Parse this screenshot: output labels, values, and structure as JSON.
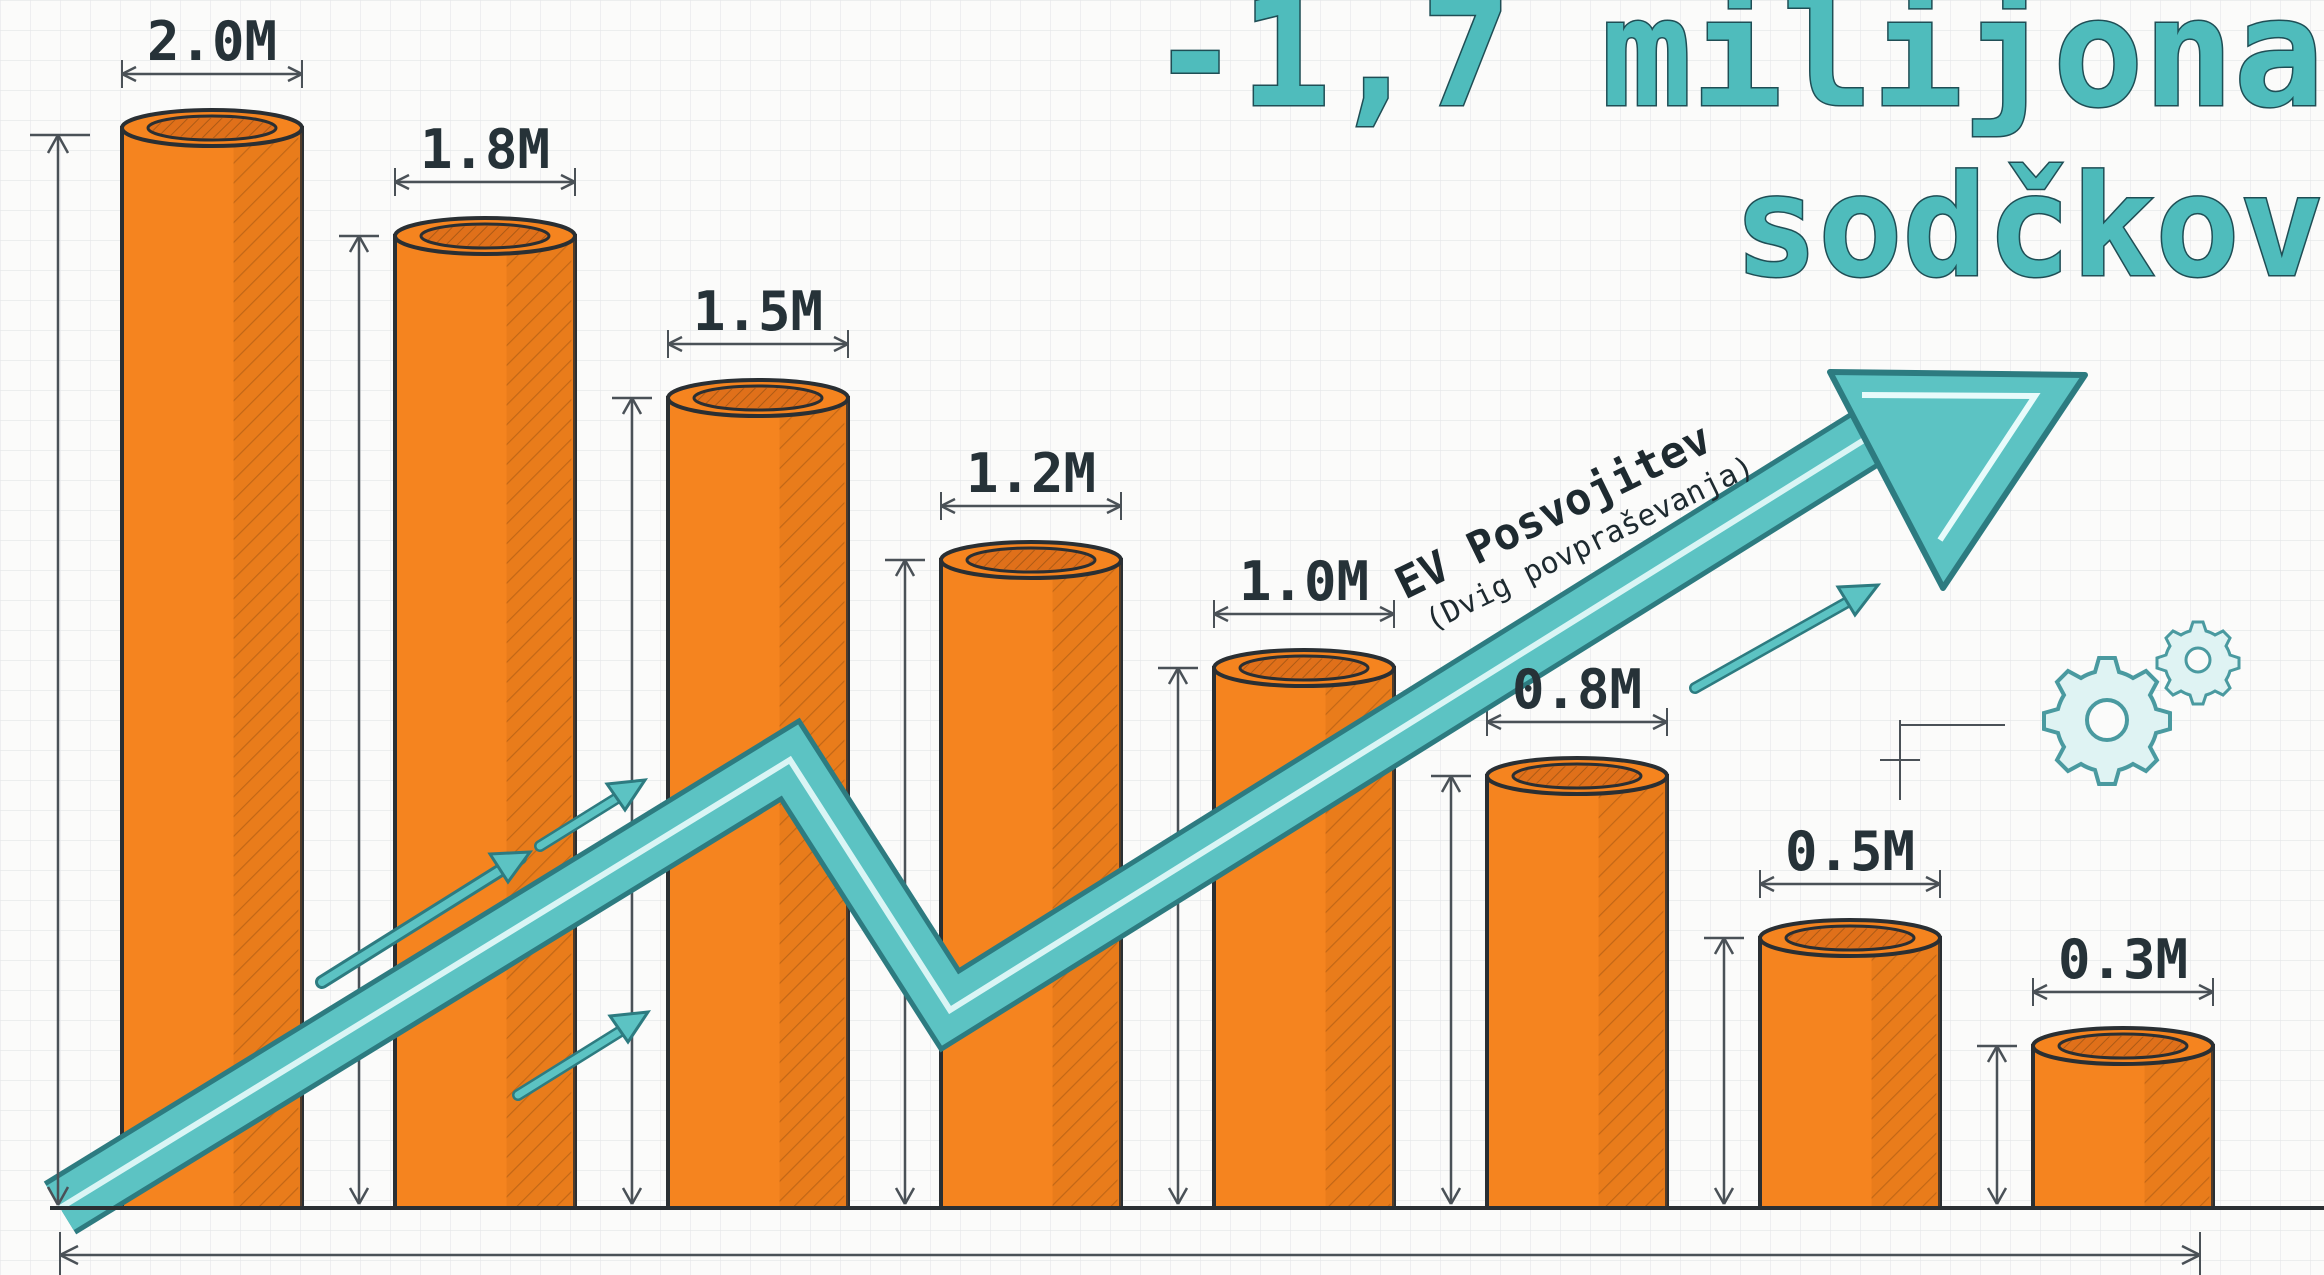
{
  "title": {
    "line1": "-1,7 milijona",
    "line2": "sodčkov"
  },
  "trend": {
    "label": "EV Posvojitev",
    "sublabel": "(Dvig povpraševanja)"
  },
  "icons": [
    "gear-icon",
    "gear-icon"
  ],
  "colors": {
    "bar": "#f5841f",
    "bar_dark": "#c8650f",
    "outline": "#2a2f33",
    "arrow": "#5cc3c3",
    "arrow_dark": "#2d7b80",
    "title": "#4fbcbc",
    "grid": "#d9dcdf"
  },
  "chart_data": {
    "type": "bar",
    "title": "-1,7 milijona sodčkov",
    "categories": [
      "",
      "",
      "",
      "",
      "",
      "",
      "",
      ""
    ],
    "values": [
      2.0,
      1.8,
      1.5,
      1.2,
      1.0,
      0.8,
      0.5,
      0.3
    ],
    "data_labels": [
      "2.0M",
      "1.8M",
      "1.5M",
      "1.2M",
      "1.0M",
      "0.8M",
      "0.5M",
      "0.3M"
    ],
    "ylim": [
      0,
      2.0
    ],
    "grid": true,
    "annotation": "EV Posvojitev (Dvig povpraševanja)"
  }
}
